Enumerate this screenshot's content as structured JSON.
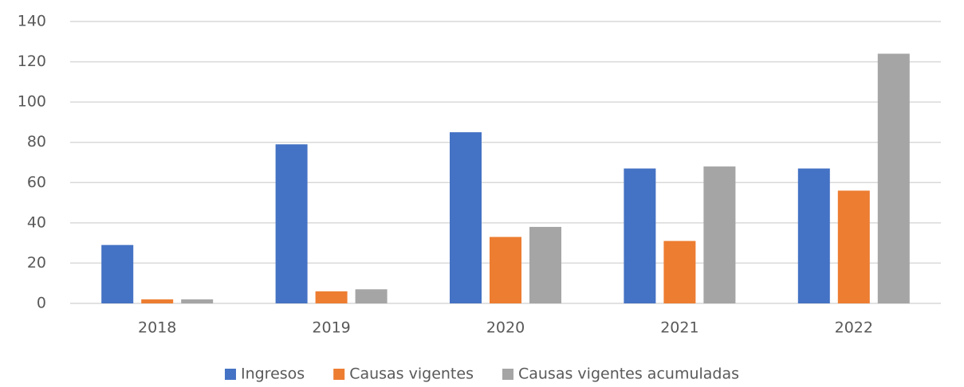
{
  "chart_data": {
    "type": "bar",
    "categories": [
      "2018",
      "2019",
      "2020",
      "2021",
      "2022"
    ],
    "series": [
      {
        "name": "Ingresos",
        "color": "#4472c4",
        "values": [
          29,
          79,
          85,
          67,
          67
        ]
      },
      {
        "name": "Causas vigentes",
        "color": "#ed7d31",
        "values": [
          2,
          6,
          33,
          31,
          56
        ]
      },
      {
        "name": "Causas vigentes acumuladas",
        "color": "#a5a5a5",
        "values": [
          2,
          7,
          38,
          68,
          124
        ]
      }
    ],
    "ylim": [
      0,
      140
    ],
    "yticks": [
      0,
      20,
      40,
      60,
      80,
      100,
      120,
      140
    ],
    "grid": true,
    "legend": "bottom"
  }
}
